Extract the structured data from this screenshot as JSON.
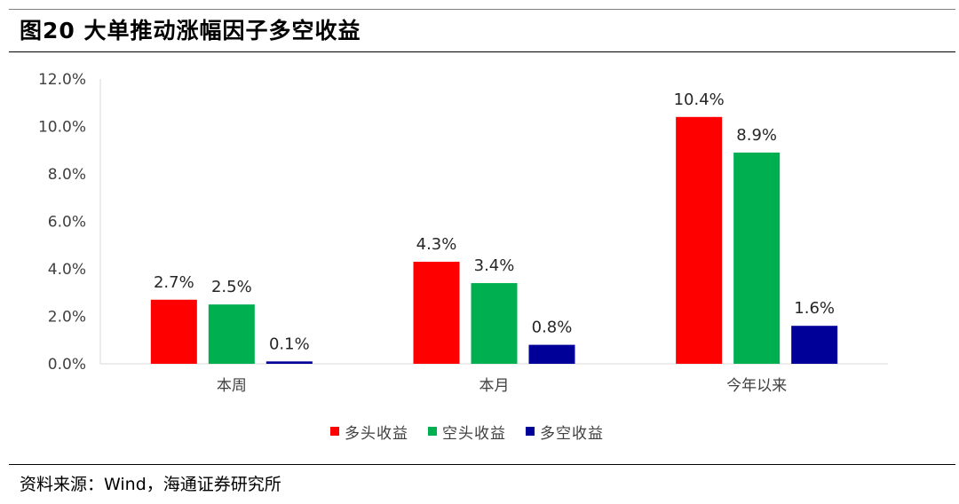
{
  "figure": {
    "title": "图20 大单推动涨幅因子多空收益",
    "source": "资料来源：Wind，海通证券研究所"
  },
  "chart_data": {
    "type": "bar",
    "title": "",
    "xlabel": "",
    "ylabel": "",
    "categories": [
      "本周",
      "本月",
      "今年以来"
    ],
    "series": [
      {
        "name": "多头收益",
        "color": "#ff0000",
        "values": [
          2.7,
          4.3,
          10.4
        ],
        "labels": [
          "2.7%",
          "4.3%",
          "10.4%"
        ]
      },
      {
        "name": "空头收益",
        "color": "#00b050",
        "values": [
          2.5,
          3.4,
          8.9
        ],
        "labels": [
          "2.5%",
          "3.4%",
          "8.9%"
        ]
      },
      {
        "name": "多空收益",
        "color": "#000099",
        "values": [
          0.1,
          0.8,
          1.6
        ],
        "labels": [
          "0.1%",
          "0.8%",
          "1.6%"
        ]
      }
    ],
    "ylim": [
      0,
      12
    ],
    "yticks": [
      0,
      2,
      4,
      6,
      8,
      10,
      12
    ],
    "ytick_labels": [
      "0.0%",
      "2.0%",
      "4.0%",
      "6.0%",
      "8.0%",
      "10.0%",
      "12.0%"
    ],
    "legend_position": "bottom",
    "grid": false,
    "axis_color": "#d9d9d9"
  }
}
